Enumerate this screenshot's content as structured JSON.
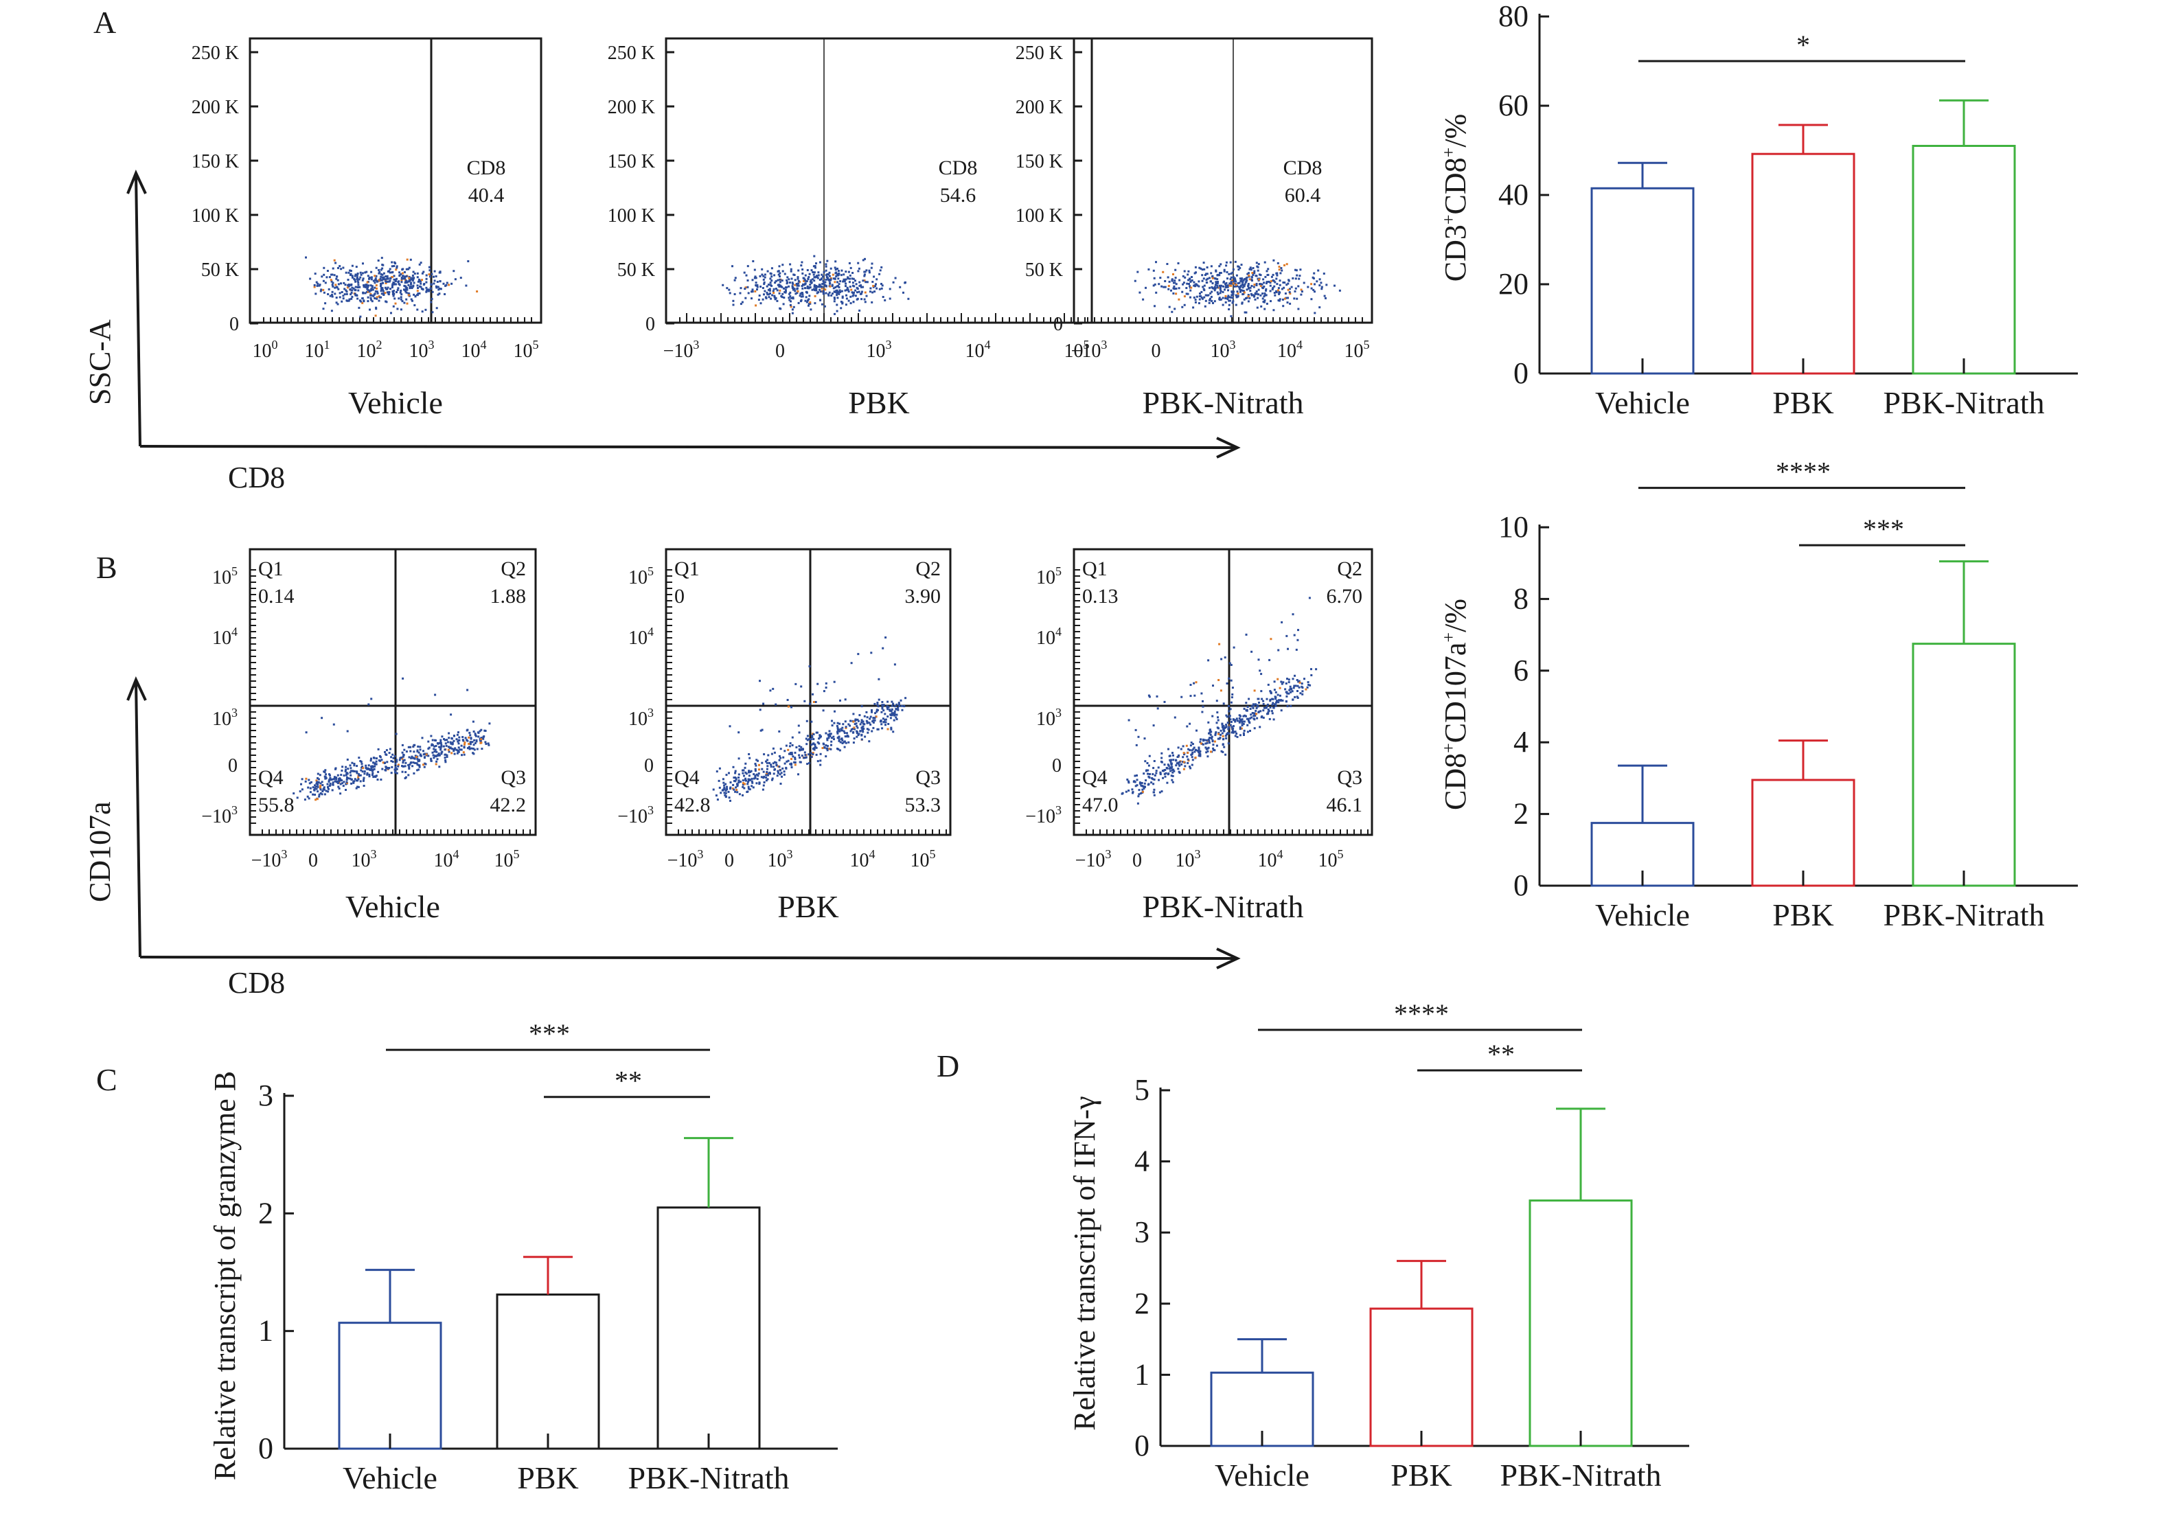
{
  "figure": {
    "panels": [
      "A",
      "B",
      "C",
      "D"
    ],
    "colors": {
      "Vehicle": "#2b4c9b",
      "PBK": "#d4262d",
      "PBK-Nitrath": "#3fb23f",
      "neutral": "#1a1a1a",
      "event_blue": "#2b4c9b",
      "event_orange": "#e07b26"
    }
  },
  "flow": {
    "A": {
      "letter": "A",
      "y_axis_title": "SSC-A",
      "x_axis_title": "CD8",
      "y_ticks": [
        "250 K",
        "200 K",
        "150 K",
        "100 K",
        "50 K",
        "0"
      ],
      "plots": [
        {
          "title": "Vehicle",
          "gate_name": "CD8",
          "gate_value": "40.4",
          "x_ticks": [
            "10^0",
            "10^1",
            "10^2",
            "10^3",
            "10^4",
            "10^5"
          ]
        },
        {
          "title": "PBK",
          "gate_name": "CD8",
          "gate_value": "54.6",
          "x_ticks": [
            "-10^3",
            "0",
            "10^3",
            "10^4",
            "10^5"
          ]
        },
        {
          "title": "PBK-Nitrath",
          "gate_name": "CD8",
          "gate_value": "60.4",
          "x_ticks": [
            "-10^3",
            "0",
            "10^3",
            "10^4",
            "10^5"
          ]
        }
      ]
    },
    "B": {
      "letter": "B",
      "y_axis_title": "CD107a",
      "x_axis_title": "CD8",
      "y_ticks": [
        "10^5",
        "10^4",
        "10^3",
        "0",
        "-10^3"
      ],
      "x_ticks": [
        "-10^3",
        "0",
        "10^3",
        "10^4",
        "10^5"
      ],
      "plots": [
        {
          "title": "Vehicle",
          "Q1": "0.14",
          "Q2": "1.88",
          "Q3": "42.2",
          "Q4": "55.8"
        },
        {
          "title": "PBK",
          "Q1": "0",
          "Q2": "3.90",
          "Q3": "53.3",
          "Q4": "42.8"
        },
        {
          "title": "PBK-Nitrath",
          "Q1": "0.13",
          "Q2": "6.70",
          "Q3": "46.1",
          "Q4": "47.0"
        }
      ],
      "quadrant_names": [
        "Q1",
        "Q2",
        "Q3",
        "Q4"
      ]
    }
  },
  "chart_data": [
    {
      "id": "A-bar",
      "type": "bar",
      "title": "",
      "ylabel": "CD3+CD8+/%",
      "ylabel_parts": [
        "CD3",
        "+",
        "CD8",
        "+",
        "/%"
      ],
      "categories": [
        "Vehicle",
        "PBK",
        "PBK-Nitrath"
      ],
      "values": [
        41.5,
        49.2,
        51.0
      ],
      "error_upper": [
        47.2,
        55.7,
        61.2
      ],
      "ylim": [
        0,
        80
      ],
      "yticks": [
        0,
        20,
        40,
        60,
        80
      ],
      "bar_colors": [
        "#2b4c9b",
        "#d4262d",
        "#3fb23f"
      ],
      "error_colors": [
        "#2b4c9b",
        "#d4262d",
        "#3fb23f"
      ],
      "significance": [
        {
          "from": "Vehicle",
          "to": "PBK-Nitrath",
          "label": "*",
          "level": 70
        }
      ]
    },
    {
      "id": "B-bar",
      "type": "bar",
      "title": "",
      "ylabel": "CD8+CD107a+/%",
      "ylabel_parts": [
        "CD8",
        "+",
        "CD107a",
        "+",
        "/%"
      ],
      "categories": [
        "Vehicle",
        "PBK",
        "PBK-Nitrath"
      ],
      "values": [
        1.75,
        2.95,
        6.75
      ],
      "error_upper": [
        3.35,
        4.05,
        9.05
      ],
      "ylim": [
        0,
        10
      ],
      "yticks": [
        0,
        2,
        4,
        6,
        8,
        10
      ],
      "bar_colors": [
        "#2b4c9b",
        "#d4262d",
        "#3fb23f"
      ],
      "error_colors": [
        "#2b4c9b",
        "#d4262d",
        "#3fb23f"
      ],
      "significance": [
        {
          "from": "Vehicle",
          "to": "PBK-Nitrath",
          "label": "****",
          "level": 11.1
        },
        {
          "from": "PBK",
          "to": "PBK-Nitrath",
          "label": "***",
          "level": 9.5
        }
      ]
    },
    {
      "id": "C-bar",
      "type": "bar",
      "title": "",
      "ylabel": "Relative transcript of granzyme B",
      "categories": [
        "Vehicle",
        "PBK",
        "PBK-Nitrath"
      ],
      "values": [
        1.07,
        1.31,
        2.05
      ],
      "error_upper": [
        1.52,
        1.63,
        2.64
      ],
      "ylim": [
        0,
        3
      ],
      "yticks": [
        0,
        1,
        2,
        3
      ],
      "bar_colors": [
        "#2b4c9b",
        "#1a1a1a",
        "#1a1a1a"
      ],
      "error_colors": [
        "#2b4c9b",
        "#d4262d",
        "#3fb23f"
      ],
      "significance": [
        {
          "from": "Vehicle",
          "to": "PBK-Nitrath",
          "label": "***",
          "level": 3.39
        },
        {
          "from": "PBK",
          "to": "PBK-Nitrath",
          "label": "**",
          "level": 2.99
        }
      ]
    },
    {
      "id": "D-bar",
      "type": "bar",
      "title": "",
      "ylabel": "Relative transcript of IFN-γ",
      "categories": [
        "Vehicle",
        "PBK",
        "PBK-Nitrath"
      ],
      "values": [
        1.03,
        1.93,
        3.45
      ],
      "error_upper": [
        1.5,
        2.6,
        4.74
      ],
      "ylim": [
        0,
        5
      ],
      "yticks": [
        0,
        1,
        2,
        3,
        4,
        5
      ],
      "bar_colors": [
        "#2b4c9b",
        "#d4262d",
        "#3fb23f"
      ],
      "error_colors": [
        "#2b4c9b",
        "#d4262d",
        "#3fb23f"
      ],
      "significance": [
        {
          "from": "Vehicle",
          "to": "PBK-Nitrath",
          "label": "****",
          "level": 5.85
        },
        {
          "from": "PBK",
          "to": "PBK-Nitrath",
          "label": "**",
          "level": 5.28
        }
      ]
    }
  ],
  "panel_letters": {
    "A": "A",
    "B": "B",
    "C": "C",
    "D": "D"
  }
}
